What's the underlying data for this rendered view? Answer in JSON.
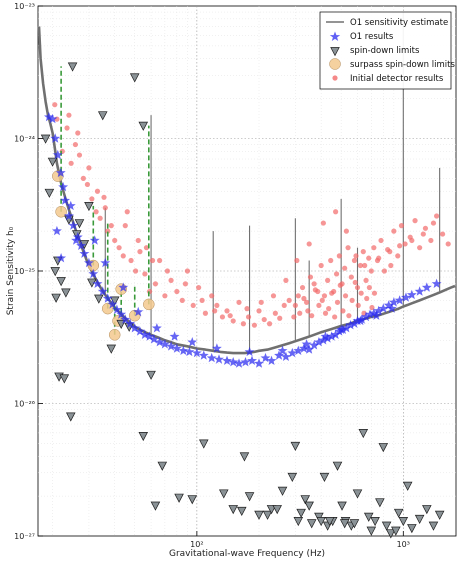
{
  "chart_data": {
    "type": "scatter",
    "title": "",
    "xlabel": "Gravitational-wave Frequency (Hz)",
    "ylabel": "Strain Sensitivity h₀",
    "xscale": "log",
    "yscale": "log",
    "xlim": [
      17,
      1800
    ],
    "ylim": [
      1e-27,
      1e-23
    ],
    "x_ticks": [
      {
        "value": 100,
        "label": "10²"
      },
      {
        "value": 1000,
        "label": "10³"
      }
    ],
    "y_ticks": [
      {
        "value": 1e-23,
        "label": "10⁻²³"
      },
      {
        "value": 1e-24,
        "label": "10⁻²⁴"
      },
      {
        "value": 1e-25,
        "label": "10⁻²⁵"
      },
      {
        "value": 1e-26,
        "label": "10⁻²⁶"
      },
      {
        "value": 1e-27,
        "label": "10⁻²⁷"
      }
    ],
    "grid": true,
    "legend_position": "top-right",
    "colors": {
      "curve": "#707070",
      "o1_results": "#2b2bf0",
      "spin_down": "#8a9296",
      "surpass": "#f3c98e",
      "initial": "#f26a6a",
      "dashed_link": "#3a9a3a"
    },
    "series": [
      {
        "name": "O1 sensitivity estimate",
        "kind": "line",
        "x": [
          17.2,
          17.5,
          18,
          18.5,
          19,
          19.5,
          20,
          20.5,
          21,
          22,
          23,
          24,
          25,
          26,
          27,
          28,
          29,
          30,
          32,
          34,
          36,
          38,
          40,
          42,
          45,
          48,
          50,
          55,
          60,
          65,
          70,
          75,
          80,
          90,
          100,
          110,
          120,
          130,
          140,
          150,
          160,
          170,
          180,
          190,
          200,
          220,
          240,
          260,
          280,
          300,
          330,
          360,
          400,
          450,
          500,
          550,
          600,
          650,
          700,
          750,
          800,
          850,
          900,
          950,
          1000,
          1050,
          1100,
          1200,
          1300,
          1400,
          1500,
          1600,
          1700,
          1780
        ],
        "y": [
          7e-24,
          4e-24,
          2.6e-24,
          1.9e-24,
          1.5e-24,
          1.3e-24,
          1.1e-24,
          8.5e-25,
          6.5e-25,
          4.6e-25,
          3.6e-25,
          2.9e-25,
          2.4e-25,
          2e-25,
          1.7e-25,
          1.45e-25,
          1.25e-25,
          1.1e-25,
          9e-26,
          7.6e-26,
          6.6e-26,
          5.9e-26,
          5.3e-26,
          4.9e-26,
          4.4e-26,
          4e-26,
          3.8e-26,
          3.5e-26,
          3.3e-26,
          3.15e-26,
          3e-26,
          2.9e-26,
          2.8e-26,
          2.7e-26,
          2.6e-26,
          2.55e-26,
          2.5e-26,
          2.45e-26,
          2.42e-26,
          2.4e-26,
          2.4e-26,
          2.4e-26,
          2.42e-26,
          2.45e-26,
          2.5e-26,
          2.55e-26,
          2.65e-26,
          2.75e-26,
          2.85e-26,
          2.95e-26,
          3.1e-26,
          3.25e-26,
          3.45e-26,
          3.65e-26,
          3.85e-26,
          4e-26,
          4.2e-26,
          4.35e-26,
          4.5e-26,
          4.6e-26,
          4.75e-26,
          4.9e-26,
          5.05e-26,
          5.2e-26,
          5.4e-26,
          5.55e-26,
          5.7e-26,
          6e-26,
          6.3e-26,
          6.6e-26,
          6.9e-26,
          7.2e-26,
          7.5e-26,
          7.7e-26
        ]
      },
      {
        "name": "O1 results",
        "kind": "star",
        "x": [
          19.2,
          20.0,
          20.6,
          21.2,
          21.9,
          22.5,
          23.0,
          24.0,
          25.2,
          26.5,
          27.5,
          28.5,
          30.0,
          31.5,
          33.0,
          35.0,
          37.0,
          39.0,
          41.0,
          43.0,
          45.0,
          47.5,
          50.0,
          53.0,
          56.0,
          59.0,
          62.0,
          66.0,
          70.0,
          75.0,
          80.0,
          86.0,
          92.0,
          100.0,
          108.0,
          118.0,
          128.0,
          140.0,
          150.0,
          160.0,
          172.0,
          185.0,
          200.0,
          215.0,
          230.0,
          250.0,
          270.0,
          290.0,
          310.0,
          330.0,
          350.0,
          370.0,
          390.0,
          410.0,
          430.0,
          450.0,
          470.0,
          490.0,
          510.0,
          530.0,
          555.0,
          580.0,
          600.0,
          630.0,
          660.0,
          690.0,
          720.0,
          760.0,
          800.0,
          850.0,
          900.0,
          960.0,
          1030.0,
          1100.0,
          1200.0,
          1300.0,
          1450.0,
          21.0,
          22.0,
          24.5,
          26.0,
          32.0,
          36.0,
          44.0,
          52.0,
          64.0,
          78.0,
          95.0,
          125.0,
          180.0,
          260.0,
          340.0,
          420.0,
          500.0,
          620.0,
          740.0,
          880.0
        ],
        "y": [
          1.45e-24,
          1.4e-24,
          1e-24,
          7.5e-25,
          5.5e-25,
          4.3e-25,
          3.4e-25,
          2.6e-25,
          2.2e-25,
          1.8e-25,
          1.55e-25,
          1.35e-25,
          1.15e-25,
          9.5e-26,
          8e-26,
          7e-26,
          6.2e-26,
          5.6e-26,
          5.1e-26,
          4.7e-26,
          4.3e-26,
          4e-26,
          3.7e-26,
          3.5e-26,
          3.3e-26,
          3.2e-26,
          3.05e-26,
          2.9e-26,
          2.8e-26,
          2.7e-26,
          2.6e-26,
          2.5e-26,
          2.45e-26,
          2.4e-26,
          2.3e-26,
          2.2e-26,
          2.15e-26,
          2.1e-26,
          2.05e-26,
          2e-26,
          2.05e-26,
          2.1e-26,
          2e-26,
          2.2e-26,
          2.1e-26,
          2.3e-26,
          2.25e-26,
          2.4e-26,
          2.5e-26,
          2.6e-26,
          2.55e-26,
          2.75e-26,
          2.9e-26,
          3e-26,
          3.1e-26,
          3.2e-26,
          3.3e-26,
          3.5e-26,
          3.6e-26,
          3.7e-26,
          3.9e-26,
          4e-26,
          4.2e-26,
          4.3e-26,
          4.5e-26,
          4.7e-26,
          4.8e-26,
          5e-26,
          5.2e-26,
          5.5e-26,
          5.8e-26,
          6e-26,
          6.3e-26,
          6.6e-26,
          7e-26,
          7.5e-26,
          8e-26,
          2e-25,
          1.25e-25,
          3.1e-25,
          1.7e-25,
          1.7e-25,
          1.15e-25,
          7.5e-26,
          4.9e-26,
          3.7e-26,
          3.2e-26,
          2.9e-26,
          2.6e-26,
          2.45e-26,
          2.5e-26,
          2.8e-26,
          3.2e-26,
          3.6e-26,
          4.2e-26,
          4.6e-26,
          5.2e-26
        ]
      },
      {
        "name": "spin-down limits",
        "kind": "triangle-down",
        "x": [
          18.5,
          19.3,
          20.0,
          20.6,
          21.2,
          22.0,
          23.2,
          24.0,
          25.0,
          26.2,
          27.0,
          28.5,
          30.0,
          31.0,
          33.5,
          35.0,
          38.5,
          40.0,
          43.0,
          47.0,
          50.0,
          55.0,
          60.0,
          20.8,
          21.5,
          22.8,
          24.5,
          55.0,
          63.0,
          68.0,
          82.0,
          95.0,
          108.0,
          135.0,
          150.0,
          165.0,
          170.0,
          180.0,
          200.0,
          220.0,
          230.0,
          245.0,
          260.0,
          290.0,
          300.0,
          320.0,
          335.0,
          350.0,
          390.0,
          415.0,
          430.0,
          455.0,
          480.0,
          505.0,
          525.0,
          560.0,
          600.0,
          640.0,
          680.0,
          700.0,
          730.0,
          770.0,
          800.0,
          830.0,
          870.0,
          920.0,
          950.0,
          1000.0,
          1050.0,
          1100.0,
          1200.0,
          1300.0,
          1400.0,
          1500.0,
          310.0,
          360.0,
          400.0,
          440.0,
          520.0,
          580.0
        ],
        "y": [
          1e-24,
          3.9e-25,
          6.7e-25,
          1e-25,
          1.2e-25,
          8.4e-26,
          6.9e-26,
          2.45e-25,
          3.5e-24,
          1.9e-25,
          2.3e-25,
          1.6e-25,
          3.1e-25,
          8.2e-26,
          6.2e-26,
          1.5e-24,
          2.6e-26,
          6e-26,
          4e-26,
          3.8e-26,
          2.9e-24,
          1.25e-24,
          1.65e-26,
          6.3e-26,
          1.6e-26,
          1.55e-26,
          8e-27,
          5.7e-27,
          1.7e-27,
          3.4e-27,
          1.95e-27,
          1.9e-27,
          5e-27,
          2.1e-27,
          1.6e-27,
          1.55e-27,
          4e-27,
          2e-27,
          1.45e-27,
          1.45e-27,
          1.6e-27,
          1.6e-27,
          2.2e-27,
          2.8e-27,
          4.8e-27,
          1.5e-27,
          1.9e-27,
          1.7e-27,
          1.4e-27,
          2.8e-27,
          1.2e-27,
          1.3e-27,
          3.4e-27,
          1.7e-27,
          1.3e-27,
          1.2e-27,
          2.1e-27,
          6e-27,
          1.4e-27,
          1.1e-27,
          1.3e-27,
          1.8e-27,
          4.7e-27,
          1.2e-27,
          1.05e-27,
          1.1e-27,
          1.5e-27,
          1.3e-27,
          2.4e-27,
          1.15e-27,
          1.35e-27,
          1.6e-27,
          1.2e-27,
          1.45e-27,
          1.3e-27,
          1.25e-27,
          1.3e-27,
          1.3e-27,
          1.25e-27,
          1.25e-27
        ]
      },
      {
        "name": "surpass spin-down limits",
        "kind": "circle",
        "x": [
          21.2,
          22.0,
          31.5,
          37.0,
          40.0,
          41.5,
          43.0,
          50.0,
          58.5
        ],
        "y": [
          5.2e-25,
          2.8e-25,
          1.1e-25,
          5.2e-26,
          3.3e-26,
          4.2e-26,
          7.3e-26,
          4.6e-26,
          5.6e-26
        ]
      },
      {
        "name": "Initial detector results",
        "kind": "dot",
        "x": [
          20.5,
          21.0,
          22.3,
          23.5,
          24.6,
          25.8,
          27.0,
          28.2,
          29.5,
          31.0,
          32.5,
          34.0,
          35.5,
          37.0,
          38.5,
          40.0,
          42.0,
          44.0,
          46.0,
          48.0,
          50.5,
          53.0,
          56.0,
          59.0,
          63.0,
          66.0,
          70.0,
          75.0,
          80.0,
          85.0,
          90.0,
          96.0,
          102.0,
          110.0,
          118.0,
          125.0,
          133.0,
          140.0,
          150.0,
          160.0,
          168.0,
          178.0,
          190.0,
          200.0,
          212.0,
          225.0,
          240.0,
          252.0,
          265.0,
          280.0,
          295.0,
          310.0,
          325.0,
          340.0,
          355.0,
          370.0,
          385.0,
          400.0,
          415.0,
          430.0,
          445.0,
          460.0,
          475.0,
          490.0,
          505.0,
          520.0,
          540.0,
          560.0,
          580.0,
          600.0,
          620.0,
          640.0,
          660.0,
          680.0,
          700.0,
          720.0,
          750.0,
          780.0,
          810.0,
          840.0,
          870.0,
          900.0,
          940.0,
          980.0,
          1020.0,
          1080.0,
          1140.0,
          1200.0,
          1280.0,
          1360.0,
          1450.0,
          1550.0,
          1650.0,
          300.0,
          315.0,
          330.0,
          345.0,
          360.0,
          375.0,
          390.0,
          405.0,
          420.0,
          435.0,
          450.0,
          465.0,
          480.0,
          495.0,
          510.0,
          525.0,
          545.0,
          565.0,
          585.0,
          605.0,
          625.0,
          645.0,
          665.0,
          685.0,
          705.0,
          725.0,
          24.0,
          26.5,
          30.0,
          33.0,
          36.0,
          45.0,
          52.0,
          57.0,
          61.0,
          72.0,
          88.0,
          106.0,
          122.0,
          145.0,
          175.0,
          205.0,
          235.0,
          270.0,
          305.0,
          350.0,
          410.0,
          470.0,
          530.0,
          590.0,
          650.0,
          760.0,
          860.0,
          960.0,
          1100.0,
          1250.0,
          1400.0
        ],
        "y": [
          1.8e-24,
          1.4e-24,
          8e-25,
          1.2e-24,
          6.5e-25,
          9e-25,
          7.5e-25,
          5e-25,
          4.5e-25,
          3.5e-25,
          2.8e-25,
          2.5e-25,
          3.6e-25,
          2e-25,
          2.2e-25,
          1.7e-25,
          1.5e-25,
          1.3e-25,
          2.8e-25,
          1.2e-25,
          1e-25,
          1.4e-25,
          9.5e-26,
          7e-26,
          8e-26,
          1.2e-25,
          6.5e-26,
          8.5e-26,
          7e-26,
          6e-26,
          1e-25,
          5.5e-26,
          7.5e-26,
          4.8e-26,
          6.5e-26,
          5.5e-26,
          4.5e-26,
          5e-26,
          4.2e-26,
          5.8e-26,
          4e-26,
          4.5e-26,
          3.9e-26,
          5e-26,
          4.3e-26,
          4e-26,
          4.8e-26,
          4.4e-26,
          5.5e-26,
          6e-26,
          4.5e-26,
          6.5e-26,
          7.5e-26,
          5.8e-26,
          9e-26,
          8e-26,
          7e-26,
          1.1e-25,
          6.5e-26,
          8.5e-26,
          1.2e-25,
          7e-26,
          9.5e-26,
          1.3e-25,
          8e-26,
          1.05e-25,
          1.5e-25,
          9e-26,
          1.2e-25,
          7.5e-26,
          1.1e-25,
          1.4e-25,
          8.5e-26,
          1.25e-25,
          1e-25,
          1.5e-25,
          1.2e-25,
          1.7e-25,
          1e-25,
          1.45e-25,
          1.1e-25,
          2e-25,
          1.3e-25,
          2.2e-25,
          1.6e-25,
          1.8e-25,
          2.4e-25,
          1.5e-25,
          2.1e-25,
          1.7e-25,
          2.6e-25,
          1.9e-25,
          1.6e-25,
          5.5e-26,
          4.8e-26,
          6.2e-26,
          5e-26,
          4.6e-26,
          7.2e-26,
          5.5e-26,
          6e-26,
          4.8e-26,
          5.2e-26,
          6.8e-26,
          4.5e-26,
          5.8e-26,
          7.8e-26,
          5e-26,
          6.5e-26,
          4.6e-26,
          6e-26,
          8.2e-26,
          5.5e-26,
          6.8e-26,
          4.8e-26,
          6.2e-26,
          7.5e-26,
          5.3e-26,
          6.8e-26,
          1.5e-24,
          1.1e-24,
          6e-25,
          4e-25,
          3e-25,
          2.2e-25,
          1.7e-25,
          1.5e-25,
          1.2e-25,
          1e-25,
          8e-26,
          6e-26,
          5e-26,
          4.6e-26,
          5.2e-26,
          5.8e-26,
          6.5e-26,
          8.5e-26,
          1.2e-25,
          1.6e-25,
          2.3e-25,
          2.8e-25,
          2e-25,
          1.3e-25,
          1.1e-25,
          1.25e-25,
          1.4e-25,
          1.55e-25,
          1.7e-25,
          1.9e-25,
          2.3e-25
        ]
      }
    ],
    "links": [
      {
        "x": 22.0,
        "y_low": 2.8e-25,
        "y_high": 3.5e-24
      },
      {
        "x": 31.5,
        "y_low": 1.1e-25,
        "y_high": 3.1e-25
      },
      {
        "x": 37.0,
        "y_low": 5.2e-26,
        "y_high": 2.3e-25
      },
      {
        "x": 40.0,
        "y_low": 3.3e-26,
        "y_high": 6e-26
      },
      {
        "x": 43.0,
        "y_low": 4.2e-26,
        "y_high": 7.3e-26
      },
      {
        "x": 50.0,
        "y_low": 4.6e-26,
        "y_high": 7.6e-26
      },
      {
        "x": 58.5,
        "y_low": 5.6e-26,
        "y_high": 1.25e-24
      }
    ],
    "spikes": [
      {
        "x": 36.0,
        "y_top": 3e-25
      },
      {
        "x": 60.0,
        "y_top": 1.5e-24
      },
      {
        "x": 120.0,
        "y_top": 2e-25
      },
      {
        "x": 180.0,
        "y_top": 2.2e-25
      },
      {
        "x": 300.0,
        "y_top": 2.5e-25
      },
      {
        "x": 350.0,
        "y_top": 1.2e-25
      },
      {
        "x": 500.0,
        "y_top": 3.5e-25
      },
      {
        "x": 600.0,
        "y_top": 1.5e-25
      },
      {
        "x": 1000.0,
        "y_top": 9e-24
      },
      {
        "x": 1500.0,
        "y_top": 6e-25
      }
    ]
  }
}
